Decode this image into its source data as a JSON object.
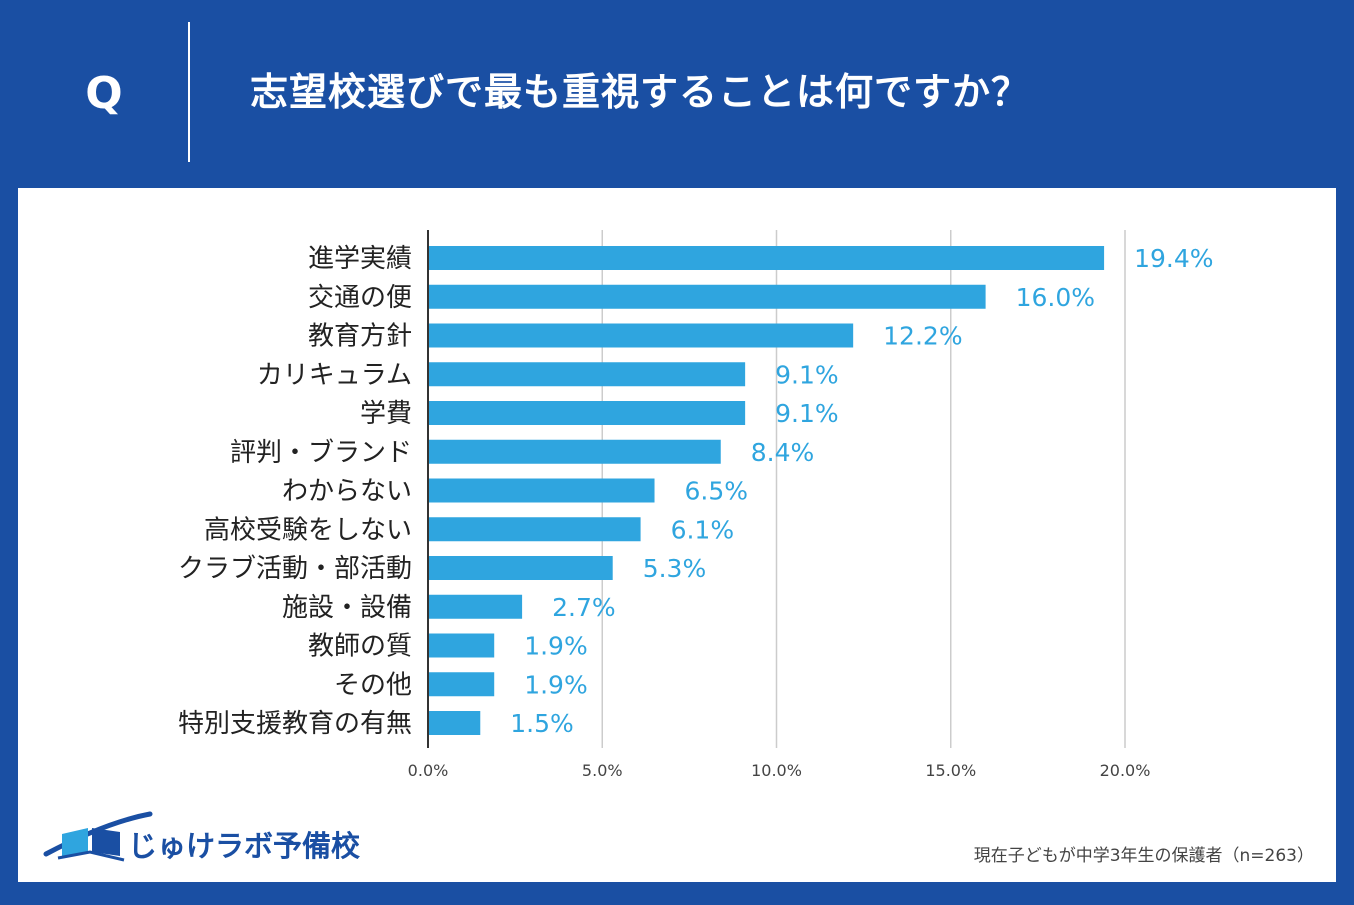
{
  "header": {
    "q_letter": "Q",
    "question": "志望校選びで最も重視することは何ですか？"
  },
  "colors": {
    "background": "#1a4fa3",
    "panel": "#ffffff",
    "bar": "#2fa5df",
    "value_label": "#2fa5df",
    "gridline": "#cccccc",
    "axis": "#333333",
    "category_text": "#222222"
  },
  "chart_data": {
    "type": "bar",
    "orientation": "horizontal",
    "title": "志望校選びで最も重視することは何ですか？",
    "categories": [
      "進学実績",
      "交通の便",
      "教育方針",
      "カリキュラム",
      "学費",
      "評判・ブランド",
      "わからない",
      "高校受験をしない",
      "クラブ活動・部活動",
      "施設・設備",
      "教師の質",
      "その他",
      "特別支援教育の有無"
    ],
    "values": [
      19.4,
      16.0,
      12.2,
      9.1,
      9.1,
      8.4,
      6.5,
      6.1,
      5.3,
      2.7,
      1.9,
      1.9,
      1.5
    ],
    "value_labels": [
      "19.4%",
      "16.0%",
      "12.2%",
      "9.1%",
      "9.1%",
      "8.4%",
      "6.5%",
      "6.1%",
      "5.3%",
      "2.7%",
      "1.9%",
      "1.9%",
      "1.5%"
    ],
    "xlim": [
      0,
      20
    ],
    "xticks": [
      0,
      5,
      10,
      15,
      20
    ],
    "xtick_labels": [
      "0.0%",
      "5.0%",
      "10.0%",
      "15.0%",
      "20.0%"
    ],
    "xlabel": "",
    "ylabel": "",
    "grid": true,
    "legend": "none"
  },
  "logo": {
    "text": "じゅけラボ予備校",
    "icon": "book-swoosh-icon"
  },
  "footnote": "現在子どもが中学3年生の保護者（n=263）"
}
